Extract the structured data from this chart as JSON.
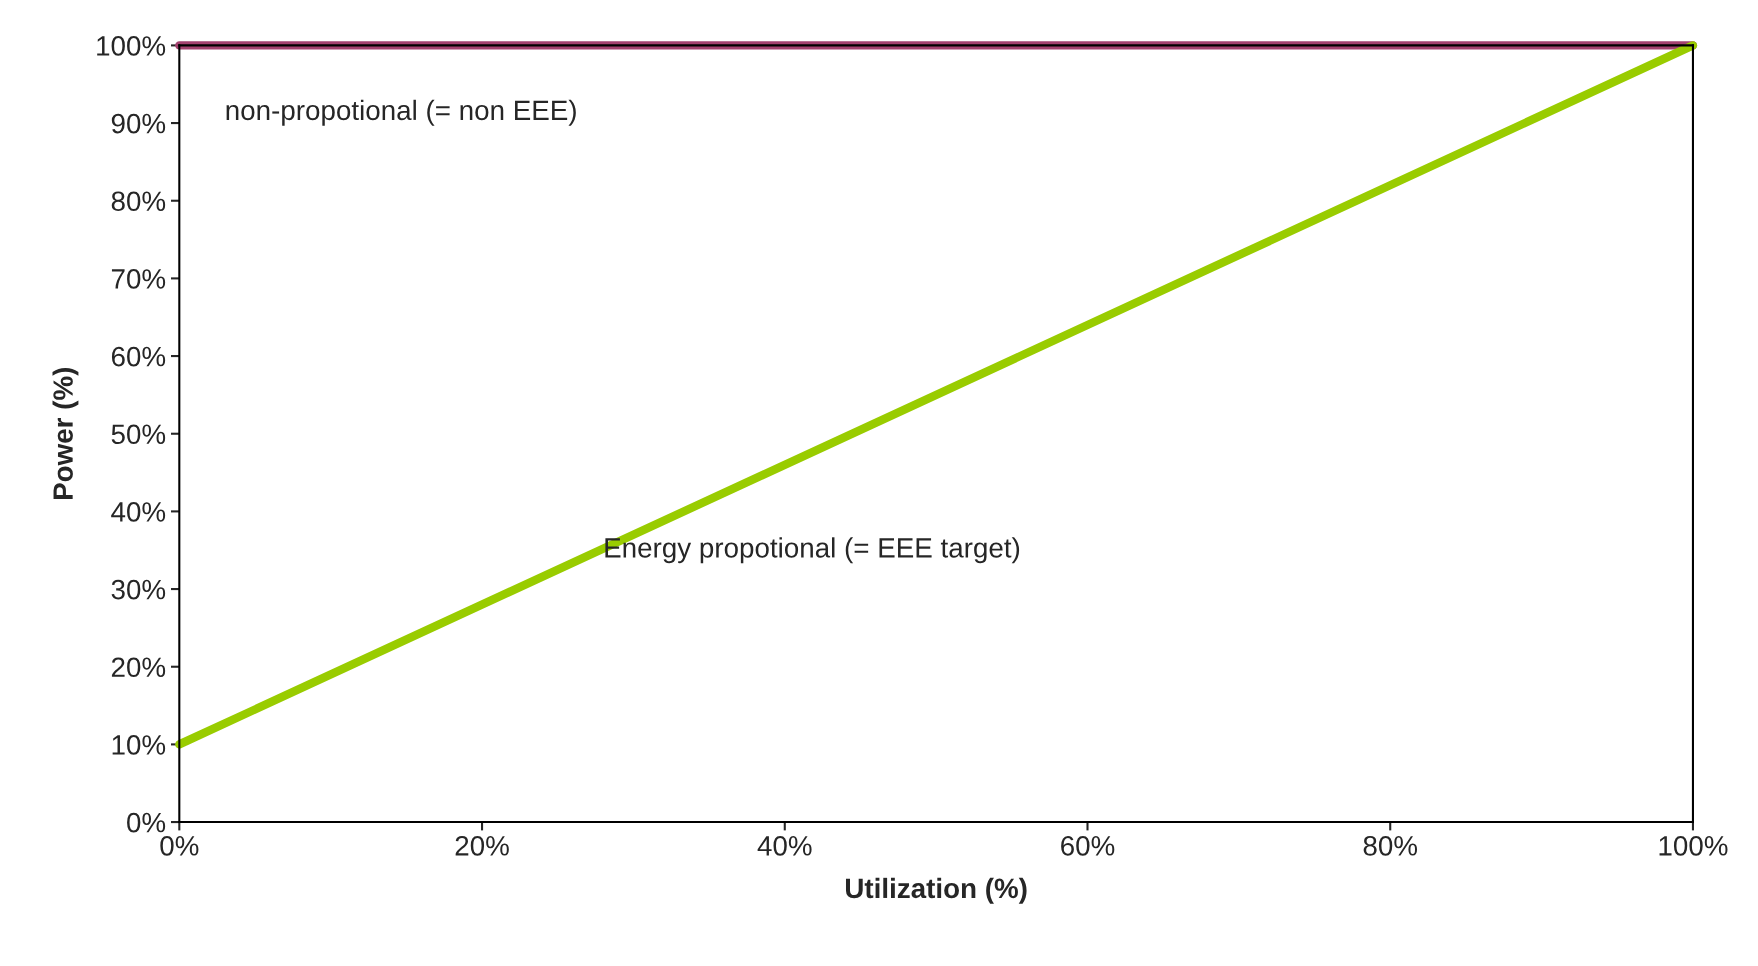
{
  "chart_data": {
    "type": "line",
    "xlabel": "Utilization (%)",
    "ylabel": "Power (%)",
    "x": [
      0,
      100
    ],
    "series": [
      {
        "name": "non-propotional (= non EEE)",
        "color": "#a3426f",
        "values": [
          100,
          100
        ]
      },
      {
        "name": "Energy propotional (= EEE target)",
        "color": "#99cc00",
        "values": [
          10,
          100
        ]
      }
    ],
    "xlim": [
      0,
      100
    ],
    "ylim": [
      0,
      100
    ],
    "xticks": [
      {
        "value": 0,
        "label": "0%"
      },
      {
        "value": 20,
        "label": "20%"
      },
      {
        "value": 40,
        "label": "40%"
      },
      {
        "value": 60,
        "label": "60%"
      },
      {
        "value": 80,
        "label": "80%"
      },
      {
        "value": 100,
        "label": "100%"
      }
    ],
    "yticks": [
      {
        "value": 0,
        "label": "0%"
      },
      {
        "value": 10,
        "label": "10%"
      },
      {
        "value": 20,
        "label": "20%"
      },
      {
        "value": 30,
        "label": "30%"
      },
      {
        "value": 40,
        "label": "40%"
      },
      {
        "value": 50,
        "label": "50%"
      },
      {
        "value": 60,
        "label": "60%"
      },
      {
        "value": 70,
        "label": "70%"
      },
      {
        "value": 80,
        "label": "80%"
      },
      {
        "value": 90,
        "label": "90%"
      },
      {
        "value": 100,
        "label": "100%"
      }
    ],
    "grid": false,
    "legend": false,
    "marker": "none",
    "line_style": "solid"
  }
}
